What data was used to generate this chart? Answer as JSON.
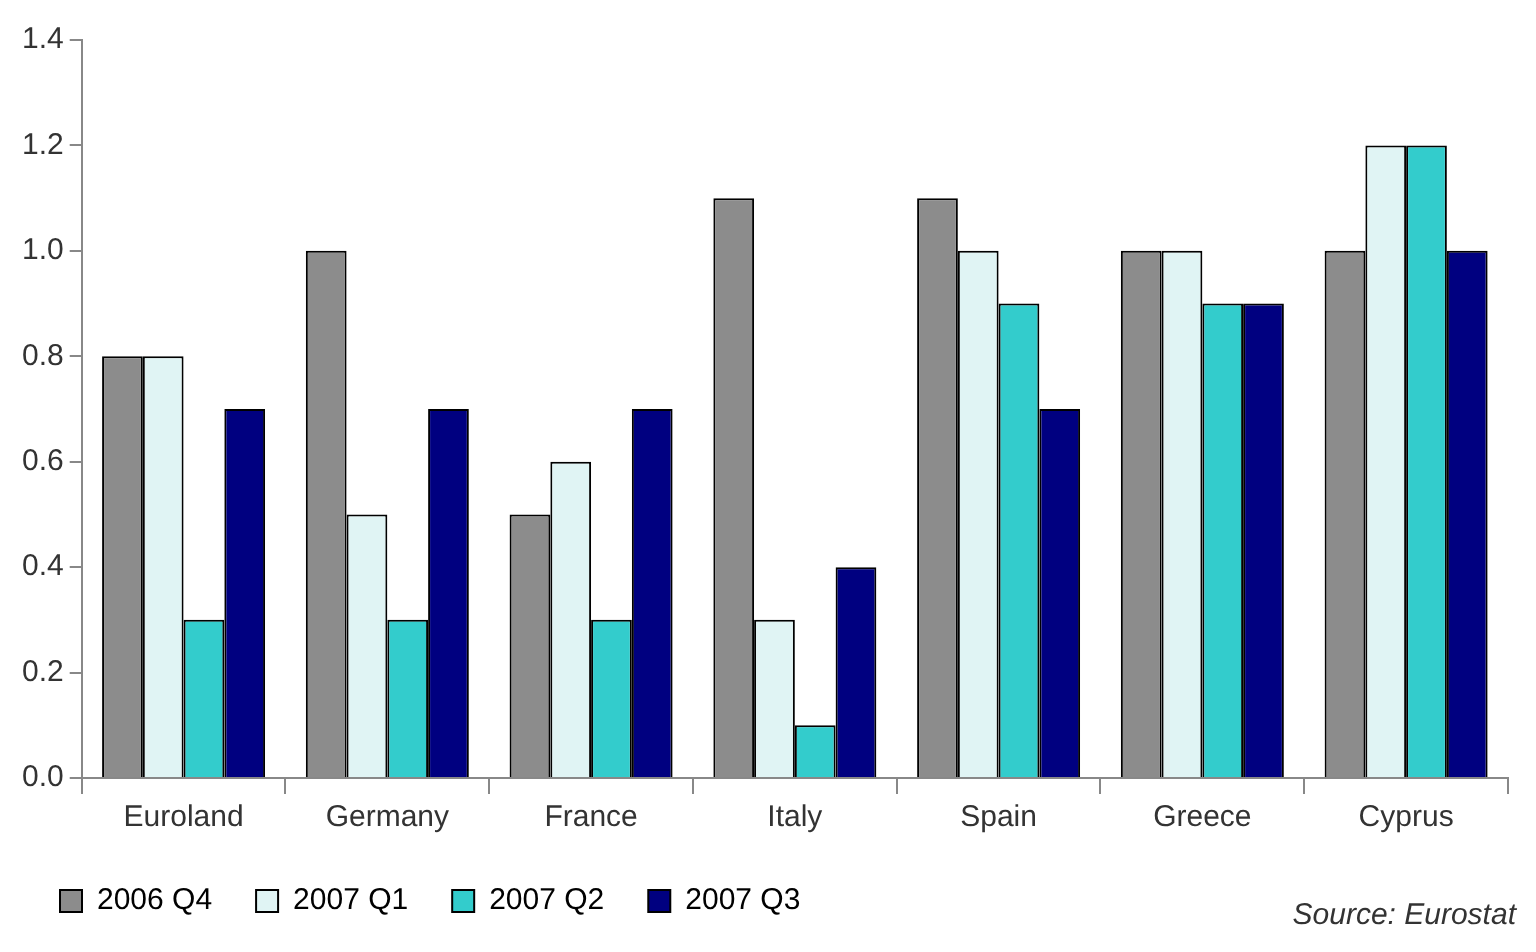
{
  "chart_data": {
    "type": "bar",
    "categories": [
      "Euroland",
      "Germany",
      "France",
      "Italy",
      "Spain",
      "Greece",
      "Cyprus"
    ],
    "series": [
      {
        "name": "2006 Q4",
        "color": "#8c8c8c",
        "values": [
          0.8,
          1.0,
          0.5,
          1.1,
          1.1,
          1.0,
          1.0
        ]
      },
      {
        "name": "2007 Q1",
        "color": "#e0f4f4",
        "values": [
          0.8,
          0.5,
          0.6,
          0.3,
          1.0,
          1.0,
          1.2
        ]
      },
      {
        "name": "2007 Q2",
        "color": "#33cccc",
        "values": [
          0.3,
          0.3,
          0.3,
          0.1,
          0.9,
          0.9,
          1.2
        ]
      },
      {
        "name": "2007 Q3",
        "color": "#000080",
        "values": [
          0.7,
          0.7,
          0.7,
          0.4,
          0.7,
          0.9,
          1.0
        ]
      }
    ],
    "ylim": [
      0,
      1.4
    ],
    "yticks": [
      {
        "value": 0,
        "label": "0.0"
      },
      0.2,
      0.4,
      0.6,
      0.8,
      {
        "value": 1,
        "label": "1.0"
      },
      1.2,
      1.4
    ],
    "grid": false,
    "legend": "bottom",
    "annotations": [
      "Source: Eurostat"
    ]
  }
}
